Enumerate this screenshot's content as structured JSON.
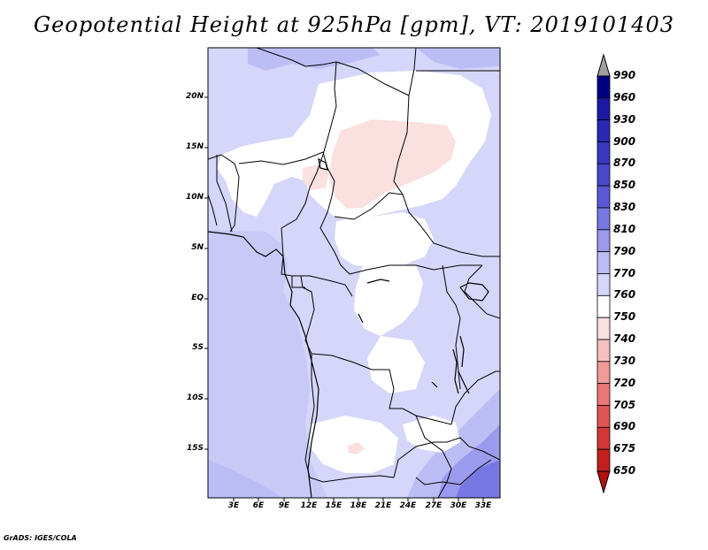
{
  "title": "Geopotential Height at 925hPa [gpm], VT: 2019101403",
  "credit": "GrADS: IGES/COLA",
  "map": {
    "lat_ticks": [
      "20N",
      "15N",
      "10N",
      "5N",
      "EQ",
      "5S",
      "10S",
      "15S"
    ],
    "lon_ticks": [
      "3E",
      "6E",
      "9E",
      "12E",
      "15E",
      "18E",
      "21E",
      "24E",
      "27E",
      "30E",
      "33E"
    ]
  },
  "colorbar": {
    "levels": [
      "990",
      "960",
      "930",
      "900",
      "870",
      "850",
      "830",
      "810",
      "790",
      "770",
      "760",
      "750",
      "740",
      "730",
      "720",
      "705",
      "690",
      "675",
      "650"
    ],
    "colors": [
      "#000080",
      "#1a1aa6",
      "#2828b4",
      "#3838c2",
      "#4848cc",
      "#5a5ad8",
      "#7878e4",
      "#9a9aee",
      "#bdbdf6",
      "#d6d6fa",
      "#ffffff",
      "#fbe0e0",
      "#f7c0c0",
      "#f19a9a",
      "#eb7777",
      "#e05555",
      "#d43636",
      "#c41f1f",
      "#b01010"
    ],
    "top_arrow_color": "#a0a0a0",
    "bottom_arrow_color": "#b01010"
  }
}
